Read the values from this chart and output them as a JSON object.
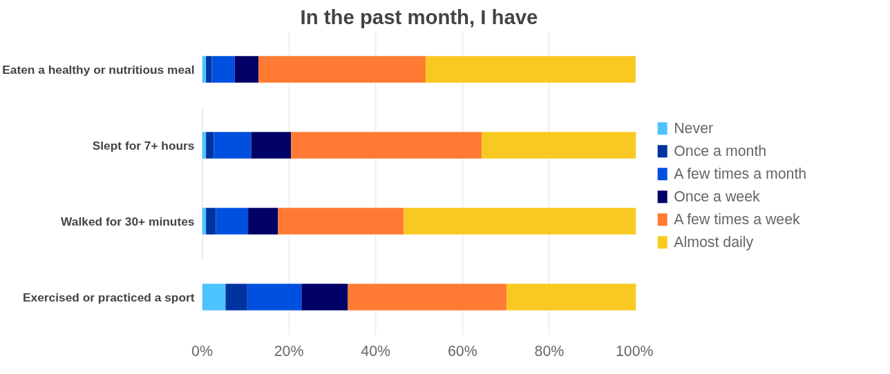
{
  "chart_data": {
    "type": "bar",
    "orientation": "horizontal",
    "stacked": true,
    "title": "In the past month, I have",
    "categories": [
      "Eaten a healthy or nutritious meal",
      "Slept for 7+ hours",
      "Walked for 30+ minutes",
      "Exercised or practiced a sport"
    ],
    "series": [
      {
        "name": "Never",
        "color": "#4dc3ff",
        "values": [
          0.9,
          0.9,
          0.9,
          5.4
        ]
      },
      {
        "name": "Once a month",
        "color": "#0033a0",
        "values": [
          1.3,
          1.8,
          2.3,
          5.0
        ]
      },
      {
        "name": "A few times a month",
        "color": "#0050e0",
        "values": [
          5.3,
          8.6,
          7.4,
          12.5
        ]
      },
      {
        "name": "Once a week",
        "color": "#000066",
        "values": [
          5.5,
          9.2,
          6.9,
          10.7
        ]
      },
      {
        "name": "A few times a week",
        "color": "#ff7b33",
        "values": [
          38.5,
          43.9,
          29.0,
          36.6
        ]
      },
      {
        "name": "Almost daily",
        "color": "#f9c922",
        "values": [
          48.4,
          35.6,
          53.5,
          29.8
        ]
      }
    ],
    "xlim": [
      0,
      100
    ],
    "xticks": [
      {
        "value": 0,
        "label": "0%"
      },
      {
        "value": 20,
        "label": "20%"
      },
      {
        "value": 40,
        "label": "40%"
      },
      {
        "value": 60,
        "label": "60%"
      },
      {
        "value": 80,
        "label": "80%"
      },
      {
        "value": 100,
        "label": "100%"
      }
    ],
    "grid": "x",
    "legend": "right"
  }
}
